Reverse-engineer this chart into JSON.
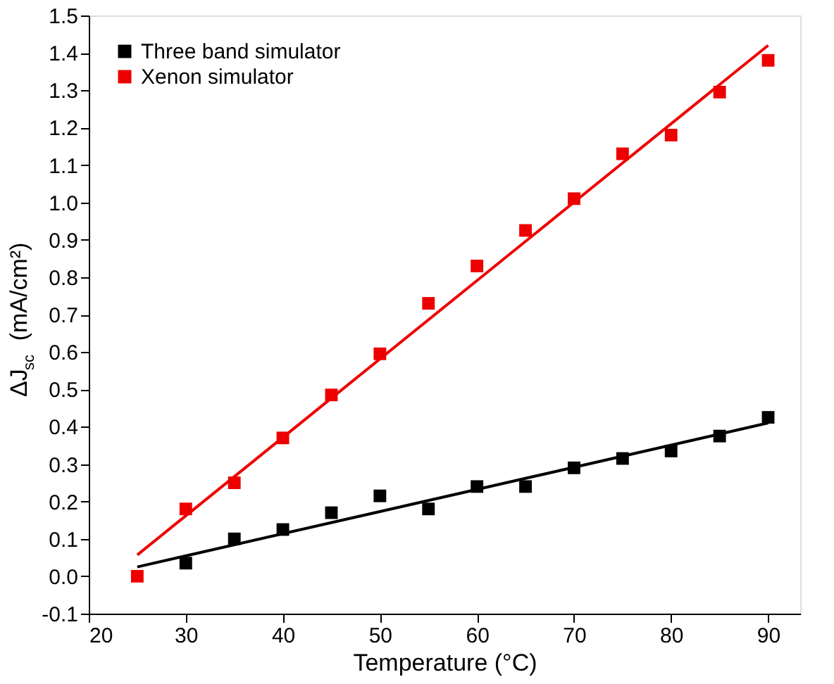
{
  "chart_data": {
    "type": "scatter",
    "xlabel": "Temperature (°C)",
    "ylabel": "ΔJ$_{sc}$ (mA/cm²)",
    "xlim": [
      20,
      93.3
    ],
    "xticks": [
      20,
      30,
      40,
      50,
      60,
      70,
      80,
      90
    ],
    "ylim": [
      -0.1,
      1.5
    ],
    "yticks": [
      -0.1,
      {
        "value": 0,
        "label": "0.0"
      },
      0.1,
      0.2,
      0.3,
      0.4,
      0.5,
      0.6,
      0.7,
      0.8,
      0.9,
      {
        "value": 1,
        "label": "1.0"
      },
      1.1,
      1.2,
      1.3,
      1.4,
      1.5
    ],
    "grid": false,
    "legend": "top left",
    "marker": "square",
    "series": [
      {
        "name": "Three band simulator",
        "color": "#000000",
        "x": [
          30,
          35,
          40,
          45,
          50,
          55,
          60,
          65,
          70,
          75,
          80,
          85,
          90
        ],
        "values": [
          0.035,
          0.1,
          0.125,
          0.17,
          0.215,
          0.18,
          0.24,
          0.24,
          0.29,
          0.315,
          0.335,
          0.375,
          0.425
        ]
      },
      {
        "name": "Xenon simulator",
        "color": "#ee0000",
        "x": [
          25,
          30,
          35,
          40,
          45,
          50,
          55,
          60,
          65,
          70,
          75,
          80,
          85,
          90
        ],
        "values": [
          0.0,
          0.18,
          0.25,
          0.37,
          0.485,
          0.595,
          0.73,
          0.83,
          0.925,
          1.01,
          1.13,
          1.18,
          1.295,
          1.38
        ]
      },
      {
        "color": "#000000",
        "type": "line",
        "marker": "none",
        "x": [
          25,
          90
        ],
        "values": [
          0.025,
          0.41
        ]
      },
      {
        "color": "#ee0000",
        "type": "line",
        "marker": "none",
        "x": [
          25,
          90
        ],
        "values": [
          0.057,
          1.42
        ]
      }
    ]
  }
}
